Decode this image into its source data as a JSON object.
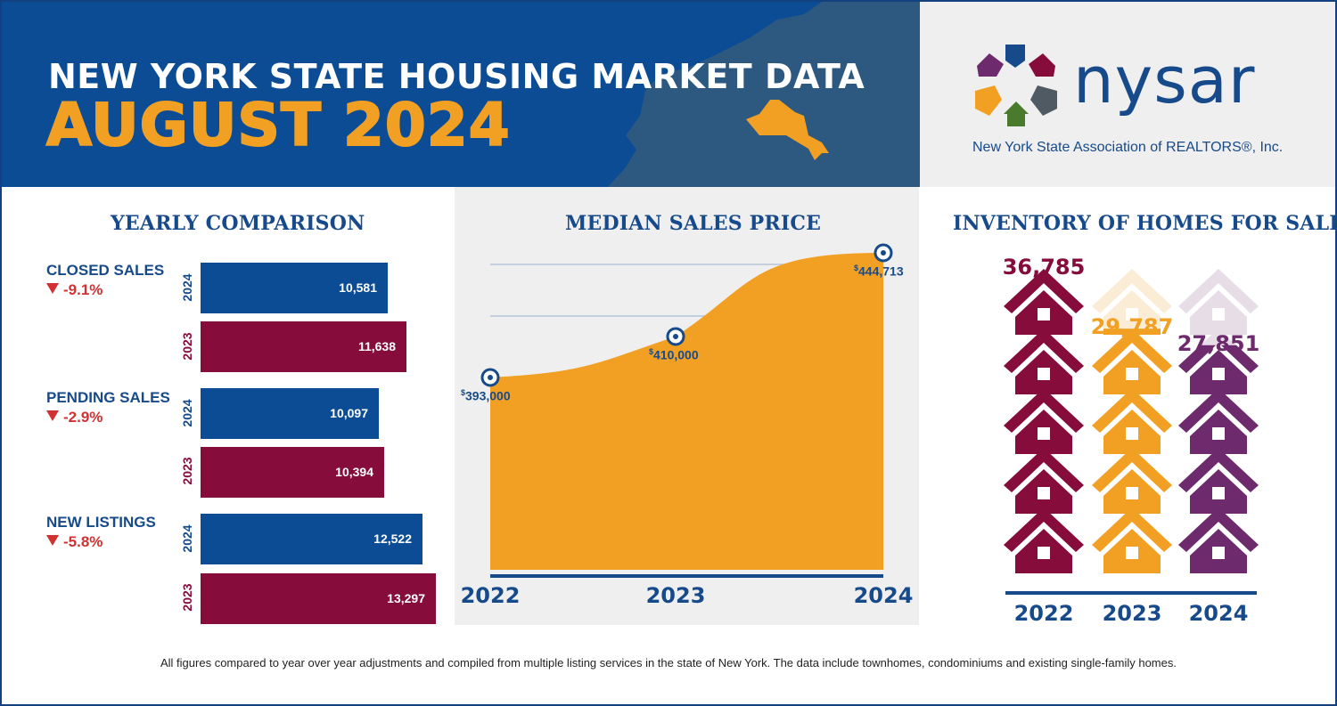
{
  "header": {
    "title_line1": "NEW YORK STATE HOUSING MARKET DATA",
    "title_line2": "AUGUST 2024",
    "colors": {
      "header_bg": "#0b4c95",
      "accent_orange": "#f2a023",
      "navy": "#174a8a",
      "maroon": "#860c3b",
      "purple": "#6d2a6d",
      "down_red": "#d33131"
    }
  },
  "logo": {
    "wordmark": "nysar",
    "subtitle": "New York State Association of REALTORS®, Inc.",
    "icon": "nysar-flower-logo-icon"
  },
  "yearly_comparison": {
    "title": "YEARLY COMPARISON",
    "metrics": [
      {
        "name": "CLOSED SALES",
        "change": "-9.1%",
        "year_2024_label": "2024",
        "year_2023_label": "2023",
        "value_2024": "10,581",
        "value_2023": "11,638"
      },
      {
        "name": "PENDING SALES",
        "change": "-2.9%",
        "year_2024_label": "2024",
        "year_2023_label": "2023",
        "value_2024": "10,097",
        "value_2023": "10,394"
      },
      {
        "name": "NEW LISTINGS",
        "change": "-5.8%",
        "year_2024_label": "2024",
        "year_2023_label": "2023",
        "value_2024": "12,522",
        "value_2023": "13,297"
      }
    ]
  },
  "median_sales_price": {
    "title": "MEDIAN SALES PRICE",
    "years": [
      "2022",
      "2023",
      "2024"
    ],
    "labels": [
      "393,000",
      "410,000",
      "444,713"
    ],
    "currency": "$"
  },
  "inventory": {
    "title": "INVENTORY OF HOMES FOR SALE",
    "years": [
      "2022",
      "2023",
      "2024"
    ],
    "values": [
      "36,785",
      "29,787",
      "27,851"
    ]
  },
  "footnote": "All figures compared to year over year adjustments and compiled from multiple listing services in the state of New York.  The data include townhomes, condominiums and existing single-family homes.",
  "chart_data": [
    {
      "type": "bar",
      "title": "YEARLY COMPARISON",
      "categories": [
        "CLOSED SALES",
        "PENDING SALES",
        "NEW LISTINGS"
      ],
      "series": [
        {
          "name": "2024",
          "values": [
            10581,
            10097,
            12522
          ]
        },
        {
          "name": "2023",
          "values": [
            11638,
            10394,
            13297
          ]
        }
      ],
      "changes_pct": [
        -9.1,
        -2.9,
        -5.8
      ],
      "orientation": "horizontal"
    },
    {
      "type": "area",
      "title": "MEDIAN SALES PRICE",
      "x": [
        "2022",
        "2023",
        "2024"
      ],
      "values": [
        393000,
        410000,
        444713
      ]
    },
    {
      "type": "bar",
      "title": "INVENTORY OF HOMES FOR SALE",
      "categories": [
        "2022",
        "2023",
        "2024"
      ],
      "values": [
        36785,
        29787,
        27851
      ],
      "ylim": [
        0,
        36785
      ]
    }
  ]
}
